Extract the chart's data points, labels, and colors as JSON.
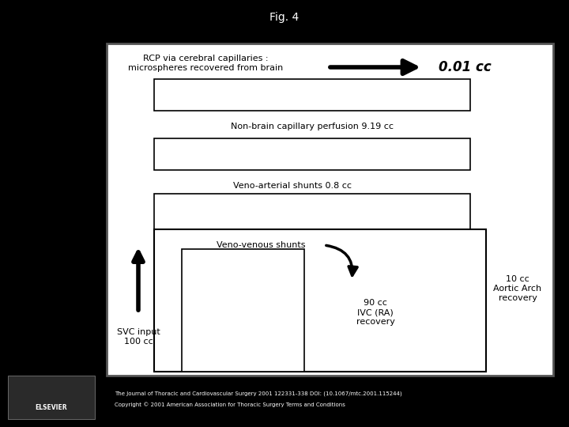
{
  "fig_title": "Fig. 4",
  "bg_color": "#000000",
  "panel_facecolor": "#ffffff",
  "labels": {
    "rcp": "RCP via cerebral capillaries :\nmicrospheres recovered from brain",
    "rcp_val": "0.01 cc",
    "nonbrain": "Non-brain capillary perfusion 9.19 cc",
    "venoart": "Veno-arterial shunts 0.8 cc",
    "venovenous": "Veno-venous shunts",
    "svc": "SVC input\n100 cc",
    "ivc": "90 cc\nIVC (RA)\nrecovery",
    "aortic": "10 cc\nAortic Arch\nrecovery"
  },
  "footer_line1": "The Journal of Thoracic and Cardiovascular Surgery 2001 122331-338 DOI: (10.1067/mtc.2001.115244)",
  "footer_line2": "Copyright © 2001 American Association for Thoracic Surgery Terms and Conditions"
}
